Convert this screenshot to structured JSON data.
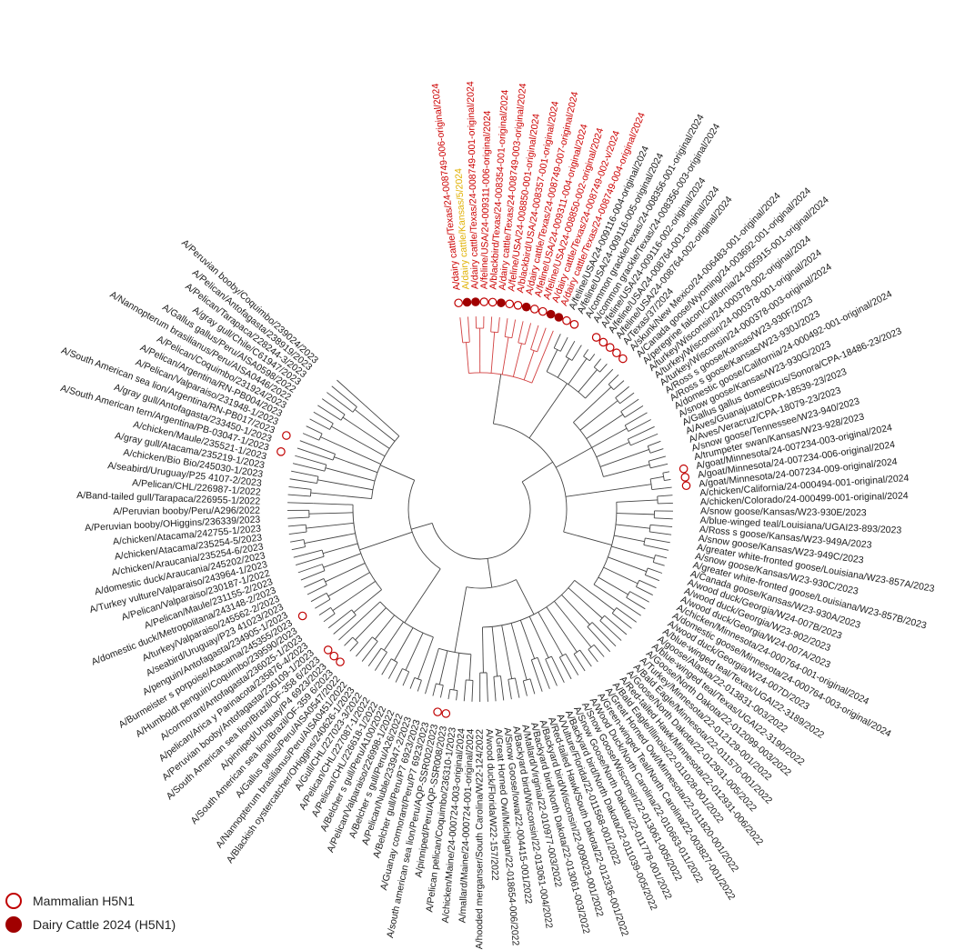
{
  "colors": {
    "default": "#1a1a1a",
    "dairy": "#cc0000",
    "kansas": "#e0b000",
    "marker_open": "#c00000",
    "marker_filled": "#a00000",
    "branch": "#444444",
    "dairy_branch": "#d24040"
  },
  "legend": {
    "mammalian_label": "Mammalian H5N1",
    "dairy_label": "Dairy Cattle 2024 (H5N1)"
  },
  "leaves": [
    {
      "label": "A/dairy cattle/Texas/24-008749-006-original/2024",
      "group": "dairy",
      "marker": "open"
    },
    {
      "label": "A/dairy cattle/Kansas/5/2024",
      "group": "kansas",
      "marker": "filled"
    },
    {
      "label": "A/dairy cattle/Texas/24-008749-001-original/2024",
      "group": "dairy",
      "marker": "filled"
    },
    {
      "label": "A/feline/USA/24-009311-006-original/2024",
      "group": "dairy",
      "marker": "open"
    },
    {
      "label": "A/blackbird/Texas/24-008354-001-original/2024",
      "group": "dairy",
      "marker": "open"
    },
    {
      "label": "A/dairy cattle/Texas/24-008749-003-original/2024",
      "group": "dairy",
      "marker": "filled"
    },
    {
      "label": "A/feline/USA/24-008850-001-original/2024",
      "group": "dairy",
      "marker": "open"
    },
    {
      "label": "A/blackbird/USA/24-008357-001-original/2024",
      "group": "dairy",
      "marker": "open"
    },
    {
      "label": "A/dairy cattle/Texas/24-008749-007-original/2024",
      "group": "dairy",
      "marker": "filled"
    },
    {
      "label": "A/feline/USA/24-009311-004-original/2024",
      "group": "dairy",
      "marker": "open"
    },
    {
      "label": "A/feline/USA/24-008850-002-original/2024",
      "group": "dairy",
      "marker": "open"
    },
    {
      "label": "A/dairy cattle/Texas/24-008749-002-v/2024",
      "group": "dairy",
      "marker": "filled"
    },
    {
      "label": "A/dairy cattle/Texas/24-008749-004-original/2024",
      "group": "dairy",
      "marker": "filled"
    },
    {
      "label": "A/feline/USA/24-009116-004-original/2024",
      "group": "default",
      "marker": "open"
    },
    {
      "label": "A/feline/USA/24-009116-005-original/2024",
      "group": "default",
      "marker": "open"
    },
    {
      "label": "A/common grackle/Texas/24-008356-001-original/2024",
      "group": "default",
      "marker": "none"
    },
    {
      "label": "A/common grackle/Texas/24-008356-003-original/2024",
      "group": "default",
      "marker": "none"
    },
    {
      "label": "A/feline/USA/24-009116-002-original/2024",
      "group": "default",
      "marker": "open"
    },
    {
      "label": "A/feline/USA/24-008764-001-original/2024",
      "group": "default",
      "marker": "open"
    },
    {
      "label": "A/feline/USA/24-008764-002-original/2024",
      "group": "default",
      "marker": "open"
    },
    {
      "label": "A/Texas/37/2024",
      "group": "default",
      "marker": "open"
    },
    {
      "label": "A/skunk/New Mexico/24-006483-001-original/2024",
      "group": "default",
      "marker": "open"
    },
    {
      "label": "A/Canada goose/Wyoming/24-003692-001-original/2024",
      "group": "default",
      "marker": "none"
    },
    {
      "label": "A/peregrine falcon/California/24-005915-001-original/2024",
      "group": "default",
      "marker": "none"
    },
    {
      "label": "A/turkey/Wisconsin/24-000378-002-original/2024",
      "group": "default",
      "marker": "none"
    },
    {
      "label": "A/turkey/Wisconsin/24-000378-001-original/2024",
      "group": "default",
      "marker": "none"
    },
    {
      "label": "A/turkey/Wisconsin/24-000378-003-original/2024",
      "group": "default",
      "marker": "none"
    },
    {
      "label": "A/Ross s goose/Kansas/W23-930F/2023",
      "group": "default",
      "marker": "none"
    },
    {
      "label": "A/Ross s goose/Kansas/W23-930J/2023",
      "group": "default",
      "marker": "none"
    },
    {
      "label": "A/domestic goose/California/24-000492-001-original/2024",
      "group": "default",
      "marker": "none"
    },
    {
      "label": "A/snow goose/Kansas/W23-930G/2023",
      "group": "default",
      "marker": "none"
    },
    {
      "label": "A/Gallus gallus domesticus/Sonora/CPA-18486-23/2023",
      "group": "default",
      "marker": "none"
    },
    {
      "label": "A/Aves/Guanajuato/CPA-18539-23/2023",
      "group": "default",
      "marker": "none"
    },
    {
      "label": "A/Aves/Veracruz/CPA-18079-23/2023",
      "group": "default",
      "marker": "none"
    },
    {
      "label": "A/snow goose/Tennessee/W23-940/2023",
      "group": "default",
      "marker": "none"
    },
    {
      "label": "A/trumpeter swan/Kansas/W23-928/2023",
      "group": "default",
      "marker": "none"
    },
    {
      "label": "A/goat/Minnesota/24-007234-003-original/2024",
      "group": "default",
      "marker": "open"
    },
    {
      "label": "A/goat/Minnesota/24-007234-006-original/2024",
      "group": "default",
      "marker": "open"
    },
    {
      "label": "A/goat/Minnesota/24-007234-009-original/2024",
      "group": "default",
      "marker": "open"
    },
    {
      "label": "A/chicken/California/24-000494-001-original/2024",
      "group": "default",
      "marker": "none"
    },
    {
      "label": "A/chicken/Colorado/24-000499-001-original/2024",
      "group": "default",
      "marker": "none"
    },
    {
      "label": "A/snow goose/Kansas/W23-930E/2023",
      "group": "default",
      "marker": "none"
    },
    {
      "label": "A/blue-winged teal/Louisiana/UGAI23-893/2023",
      "group": "default",
      "marker": "none"
    },
    {
      "label": "A/Ross s goose/Kansas/W23-949A/2023",
      "group": "default",
      "marker": "none"
    },
    {
      "label": "A/snow goose/Kansas/W23-949C/2023",
      "group": "default",
      "marker": "none"
    },
    {
      "label": "A/greater white-fronted goose/Louisiana/W23-857A/2023",
      "group": "default",
      "marker": "none"
    },
    {
      "label": "A/snow goose/Kansas/W23-930C/2023",
      "group": "default",
      "marker": "none"
    },
    {
      "label": "A/greater white-fronted goose/Louisiana/W23-857B/2023",
      "group": "default",
      "marker": "none"
    },
    {
      "label": "A/Canada goose/Kansas/W23-930A/2023",
      "group": "default",
      "marker": "none"
    },
    {
      "label": "A/wood duck/Georgia/W24-007B/2023",
      "group": "default",
      "marker": "none"
    },
    {
      "label": "A/wood duck/Georgia/W23-902/2023",
      "group": "default",
      "marker": "none"
    },
    {
      "label": "A/wood duck/Georgia/W24-007A/2023",
      "group": "default",
      "marker": "none"
    },
    {
      "label": "A/chicken/Minnesota/24-000764-001-original/2024",
      "group": "default",
      "marker": "none"
    },
    {
      "label": "A/domestic goose/Minnesota/24-000764-003-original/2024",
      "group": "default",
      "marker": "none"
    },
    {
      "label": "A/wood duck/Georgia/W24-007D/2023",
      "group": "default",
      "marker": "none"
    },
    {
      "label": "A/blue-winged teal/Texas/UGAI22-3189/2022",
      "group": "default",
      "marker": "none"
    },
    {
      "label": "A/goose/Alaska/22-013831-003/2022",
      "group": "default",
      "marker": "none"
    },
    {
      "label": "A/blue-winged teal/Texas/UGAI22-3190/2022",
      "group": "default",
      "marker": "none"
    },
    {
      "label": "A/Goose/North Dakota/22-012099-003/2022",
      "group": "default",
      "marker": "none"
    },
    {
      "label": "A/Turkey/Minnesota/22-012129-001/2022",
      "group": "default",
      "marker": "none"
    },
    {
      "label": "A/Bald Eagle/Minnesota/22-011570-001/2022",
      "group": "default",
      "marker": "none"
    },
    {
      "label": "A/Goose/North Dakota/22-012931-005/2022",
      "group": "default",
      "marker": "none"
    },
    {
      "label": "A/Red-tailed Hawk/Minnesota/22-012931-006/2022",
      "group": "default",
      "marker": "none"
    },
    {
      "label": "A/Bald Eagle/Illinois/22-011028-001/2022",
      "group": "default",
      "marker": "none"
    },
    {
      "label": "A/Great Horned Owl/Minnesota/22-011820-001/2022",
      "group": "default",
      "marker": "none"
    },
    {
      "label": "A/Green-winged Teal/North Carolina/22-003827-001/2022",
      "group": "default",
      "marker": "none"
    },
    {
      "label": "A/Wood Duck/North Carolina/22-010663-011/2022",
      "group": "default",
      "marker": "none"
    },
    {
      "label": "A/Snow Goose/Wisconsin/22-013061-005/2022",
      "group": "default",
      "marker": "none"
    },
    {
      "label": "A/Snow Goose/North Dakota/22-011778-001/2022",
      "group": "default",
      "marker": "none"
    },
    {
      "label": "A/Backyard bird/North Dakota/22-011039-005/2022",
      "group": "default",
      "marker": "none"
    },
    {
      "label": "A/Vulture/Florida/22-011568-001/2022",
      "group": "default",
      "marker": "none"
    },
    {
      "label": "A/Red-tailed Hawk/South Dakota/22-012336-001/2022",
      "group": "default",
      "marker": "none"
    },
    {
      "label": "A/Backyard bird/Wisconsin/22-009023-001/2022",
      "group": "default",
      "marker": "none"
    },
    {
      "label": "A/Backyard bird/North Dakota/22-013061-003/2022",
      "group": "default",
      "marker": "none"
    },
    {
      "label": "A/Mallard/Virginia/22-010977-003/2022",
      "group": "default",
      "marker": "none"
    },
    {
      "label": "A/Backyard bird/Wisconsin/22-013061-004/2022",
      "group": "default",
      "marker": "none"
    },
    {
      "label": "A/Snow Goose/Iowa/22-004415-001/2022",
      "group": "default",
      "marker": "none"
    },
    {
      "label": "A/Great Horned Owl/Michigan/22-018654-006/2022",
      "group": "default",
      "marker": "none"
    },
    {
      "label": "A/wood duck/Florida/W22-157/2022",
      "group": "default",
      "marker": "none"
    },
    {
      "label": "A/hooded merganser/South Carolina/W22-124/2022",
      "group": "default",
      "marker": "none"
    },
    {
      "label": "A/mallard/Maine/24-000724-001-original/2024",
      "group": "default",
      "marker": "none"
    },
    {
      "label": "A/chicken/Maine/24-000724-003-original/2024",
      "group": "default",
      "marker": "none"
    },
    {
      "label": "A/Pelican pelican/Coquimbo/236310-1/2023",
      "group": "default",
      "marker": "none"
    },
    {
      "label": "A/pinniped/Peru/AQP-SSR008/2023",
      "group": "default",
      "marker": "open"
    },
    {
      "label": "A/south american sea lion/Peru/AQP-SSR002/2023",
      "group": "default",
      "marker": "open"
    },
    {
      "label": "A/Guanay cormorant/Peru/P7 6923/2023",
      "group": "default",
      "marker": "none"
    },
    {
      "label": "A/Belcher gull/Peru/P7 6923/2023",
      "group": "default",
      "marker": "none"
    },
    {
      "label": "A/Pelican/Nuble/233947-2/2023",
      "group": "default",
      "marker": "none"
    },
    {
      "label": "A/Belcher s gull/Peru/A26/2022",
      "group": "default",
      "marker": "none"
    },
    {
      "label": "A/Pelican/Valparaiso/226998-1/2022",
      "group": "default",
      "marker": "none"
    },
    {
      "label": "A/Belcher s gull/Peru/A100/2022",
      "group": "default",
      "marker": "none"
    },
    {
      "label": "A/Pelican/CHL/226618-1/2022",
      "group": "default",
      "marker": "none"
    },
    {
      "label": "A/Pelican/CHL/227087-1/2022",
      "group": "default",
      "marker": "none"
    },
    {
      "label": "A/Gull/CHL/227023-3/2022",
      "group": "default",
      "marker": "none"
    },
    {
      "label": "A/Blackish oystercatcher/OHiggins/240626-1/2023",
      "group": "default",
      "marker": "none"
    },
    {
      "label": "A/Nannopterum brasilianus/Peru/AISA0451/2022",
      "group": "default",
      "marker": "none"
    },
    {
      "label": "A/Gallus gallus/Peru/AISA0547/2022",
      "group": "default",
      "marker": "none"
    },
    {
      "label": "A/South American sea lion/Brazil/OF-359 6/2023",
      "group": "default",
      "marker": "open"
    },
    {
      "label": "A/pinniped/Uruguay/P4 6923/2023",
      "group": "default",
      "marker": "open"
    },
    {
      "label": "A/South American sea lion/Brazil/OF-358 6/2023",
      "group": "default",
      "marker": "open"
    },
    {
      "label": "A/Peruvian booby/Antofagasta/236109-1/2023",
      "group": "default",
      "marker": "none"
    },
    {
      "label": "A/pelican/Arica y Parinacota/235876-4/2023",
      "group": "default",
      "marker": "none"
    },
    {
      "label": "A/cormorant/Antofagasta/236025-1/2023",
      "group": "default",
      "marker": "none"
    },
    {
      "label": "A/Humboldt penguin/Coquimbo/239590/2023",
      "group": "default",
      "marker": "none"
    },
    {
      "label": "A/Burmeister s porpoise/Atacama/245355/2023",
      "group": "default",
      "marker": "open"
    },
    {
      "label": "A/penguin/Antofagasta/234905-1/2023",
      "group": "default",
      "marker": "none"
    },
    {
      "label": "A/seabird/Uruguay/P23 41023/2023",
      "group": "default",
      "marker": "none"
    },
    {
      "label": "A/turkey/Valparaiso/245562-2/2023",
      "group": "default",
      "marker": "none"
    },
    {
      "label": "A/domestic duck/Metropolitana/243148-2/2023",
      "group": "default",
      "marker": "none"
    },
    {
      "label": "A/Pelican/Maule/231155-2/2023",
      "group": "default",
      "marker": "none"
    },
    {
      "label": "A/Pelican/Valparaiso/230187-1/2022",
      "group": "default",
      "marker": "none"
    },
    {
      "label": "A/Turkey vulture/Valparaiso/243964-1/2023",
      "group": "default",
      "marker": "none"
    },
    {
      "label": "A/domestic duck/Araucania/245202/2023",
      "group": "default",
      "marker": "none"
    },
    {
      "label": "A/chicken/Araucania/235254-6/2023",
      "group": "default",
      "marker": "none"
    },
    {
      "label": "A/chicken/Atacama/235254-5/2023",
      "group": "default",
      "marker": "none"
    },
    {
      "label": "A/chicken/Atacama/242755-1/2023",
      "group": "default",
      "marker": "none"
    },
    {
      "label": "A/Peruvian booby/OHiggins/236339/2023",
      "group": "default",
      "marker": "none"
    },
    {
      "label": "A/Peruvian booby/Peru/A296/2022",
      "group": "default",
      "marker": "none"
    },
    {
      "label": "A/Band-tailed gull/Tarapaca/226955-1/2022",
      "group": "default",
      "marker": "none"
    },
    {
      "label": "A/Pelican/CHL/226987-1/2022",
      "group": "default",
      "marker": "none"
    },
    {
      "label": "A/seabird/Uruguay/P25 4107-2/2023",
      "group": "default",
      "marker": "none"
    },
    {
      "label": "A/chicken/Bio Bio/245030-1/2023",
      "group": "default",
      "marker": "none"
    },
    {
      "label": "A/gray gull/Atacama/235219-1/2023",
      "group": "default",
      "marker": "none"
    },
    {
      "label": "A/chicken/Maule/235521-1/2023",
      "group": "default",
      "marker": "none"
    },
    {
      "label": "A/South American tern/Argentina/PB-03047-1/2023",
      "group": "default",
      "marker": "open"
    },
    {
      "label": "A/gray gull/Antofagasta/233450-1/2023",
      "group": "default",
      "marker": "none"
    },
    {
      "label": "A/South American sea lion/Argentina/RN-PB017/2023",
      "group": "default",
      "marker": "open"
    },
    {
      "label": "A/Pelican/Valparaiso/231948-1/2023",
      "group": "default",
      "marker": "none"
    },
    {
      "label": "A/Pelican/Argentina/RN-PB004/2023",
      "group": "default",
      "marker": "none"
    },
    {
      "label": "A/Pelican/Coquimbo/231924/2023",
      "group": "default",
      "marker": "none"
    },
    {
      "label": "A/Nannopterum brasilianus/Peru/AISA0446/2022",
      "group": "default",
      "marker": "none"
    },
    {
      "label": "A/Gallus gallus/Peru/AISA0598/2022",
      "group": "default",
      "marker": "none"
    },
    {
      "label": "A/gray gull/Chile/C61947/2023",
      "group": "default",
      "marker": "none"
    },
    {
      "label": "A/Pelican/Tarapaca/228244-3/2023",
      "group": "default",
      "marker": "none"
    },
    {
      "label": "A/Pelican/Antofagasta/238919/2023",
      "group": "default",
      "marker": "none"
    },
    {
      "label": "A/Peruvian booby/Coquimbo/239024/2023",
      "group": "default",
      "marker": "none"
    }
  ]
}
